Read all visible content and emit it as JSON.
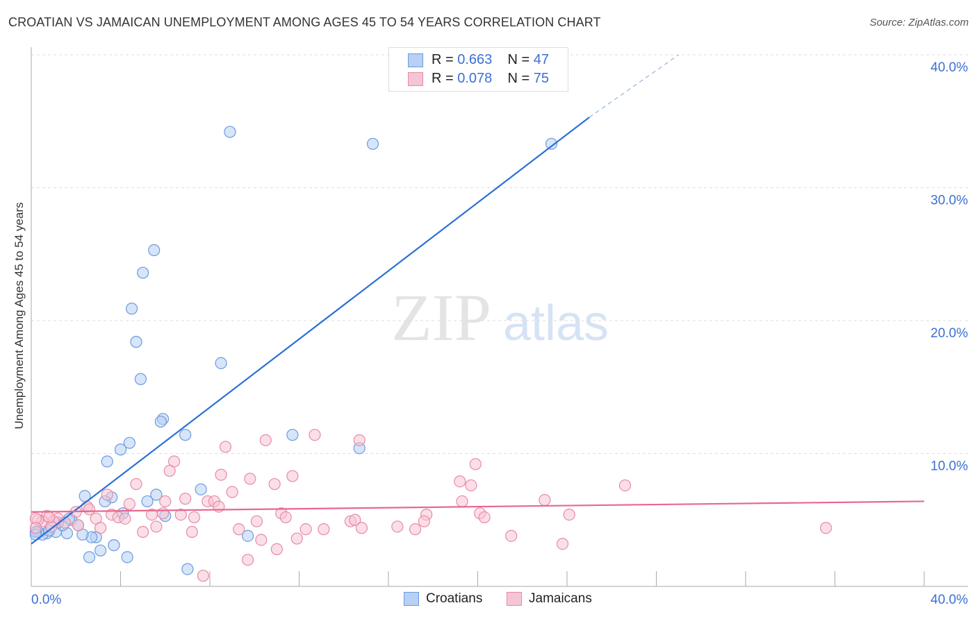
{
  "chart_data": {
    "type": "scatter",
    "title": "CROATIAN VS JAMAICAN UNEMPLOYMENT AMONG AGES 45 TO 54 YEARS CORRELATION CHART",
    "source": "Source: ZipAtlas.com",
    "ylabel": "Unemployment Among Ages 45 to 54 years",
    "xlabel": "",
    "xlim": [
      0,
      40
    ],
    "ylim": [
      0,
      40
    ],
    "x_tick_labels": [
      "0.0%",
      "40.0%"
    ],
    "y_tick_labels": [
      "10.0%",
      "20.0%",
      "30.0%",
      "40.0%"
    ],
    "y_ticks": [
      10,
      20,
      30,
      40
    ],
    "watermark": "ZIPatlas",
    "legend": [
      {
        "r_label": "R =",
        "r": "0.663",
        "n_label": "N =",
        "n": "47"
      },
      {
        "r_label": "R =",
        "r": "0.078",
        "n_label": "N =",
        "n": "75"
      }
    ],
    "series": [
      {
        "name": "Croatians",
        "color": "#6a9be0",
        "fill": "#b7d0f3",
        "trend": {
          "x": [
            0,
            25
          ],
          "y": [
            3.2,
            35.3
          ],
          "dashed_to": [
            29,
            40
          ]
        },
        "points": [
          [
            8.9,
            34.2
          ],
          [
            15.3,
            33.3
          ],
          [
            23.3,
            33.3
          ],
          [
            5.5,
            25.3
          ],
          [
            5.0,
            23.6
          ],
          [
            4.5,
            20.9
          ],
          [
            4.7,
            18.4
          ],
          [
            8.5,
            16.8
          ],
          [
            4.9,
            15.6
          ],
          [
            5.9,
            12.6
          ],
          [
            5.8,
            12.4
          ],
          [
            4.4,
            10.8
          ],
          [
            6.9,
            11.4
          ],
          [
            11.7,
            11.4
          ],
          [
            14.7,
            10.4
          ],
          [
            4.0,
            10.3
          ],
          [
            3.4,
            9.4
          ],
          [
            7.6,
            7.3
          ],
          [
            2.4,
            6.8
          ],
          [
            3.6,
            6.7
          ],
          [
            3.3,
            6.4
          ],
          [
            5.6,
            6.9
          ],
          [
            5.2,
            6.4
          ],
          [
            6.0,
            5.3
          ],
          [
            4.1,
            5.5
          ],
          [
            9.7,
            3.8
          ],
          [
            3.7,
            3.1
          ],
          [
            3.1,
            2.7
          ],
          [
            2.6,
            2.2
          ],
          [
            4.3,
            2.2
          ],
          [
            7.0,
            1.3
          ],
          [
            2.9,
            3.7
          ],
          [
            2.7,
            3.7
          ],
          [
            2.3,
            3.9
          ],
          [
            1.6,
            4.0
          ],
          [
            1.1,
            4.1
          ],
          [
            0.7,
            4.0
          ],
          [
            0.5,
            3.9
          ],
          [
            0.3,
            4.1
          ],
          [
            0.2,
            4.1
          ],
          [
            0.8,
            4.2
          ],
          [
            1.4,
            4.6
          ],
          [
            1.8,
            5.0
          ],
          [
            2.1,
            4.6
          ],
          [
            1.2,
            4.8
          ],
          [
            1.7,
            5.1
          ],
          [
            0.2,
            3.9
          ]
        ]
      },
      {
        "name": "Jamaicans",
        "color": "#e88aa8",
        "fill": "#f6c5d4",
        "trend": {
          "x": [
            0,
            40
          ],
          "y": [
            5.6,
            6.4
          ]
        },
        "points": [
          [
            6.4,
            9.4
          ],
          [
            6.2,
            8.7
          ],
          [
            8.7,
            10.5
          ],
          [
            10.5,
            11.0
          ],
          [
            12.7,
            11.4
          ],
          [
            14.7,
            11.0
          ],
          [
            19.9,
            9.2
          ],
          [
            4.7,
            7.7
          ],
          [
            8.5,
            8.4
          ],
          [
            9.8,
            8.1
          ],
          [
            10.9,
            7.7
          ],
          [
            11.7,
            8.3
          ],
          [
            19.2,
            7.9
          ],
          [
            19.7,
            7.6
          ],
          [
            26.6,
            7.6
          ],
          [
            9.0,
            7.1
          ],
          [
            6.9,
            6.6
          ],
          [
            6.0,
            6.4
          ],
          [
            7.9,
            6.4
          ],
          [
            8.2,
            6.4
          ],
          [
            8.4,
            6.0
          ],
          [
            3.4,
            6.9
          ],
          [
            2.5,
            6.0
          ],
          [
            4.4,
            6.2
          ],
          [
            19.3,
            6.4
          ],
          [
            23.0,
            6.5
          ],
          [
            5.4,
            5.4
          ],
          [
            5.9,
            5.5
          ],
          [
            3.6,
            5.4
          ],
          [
            3.9,
            5.2
          ],
          [
            4.2,
            5.1
          ],
          [
            2.9,
            5.1
          ],
          [
            2.0,
            5.6
          ],
          [
            7.3,
            5.2
          ],
          [
            6.7,
            5.4
          ],
          [
            11.2,
            5.5
          ],
          [
            11.4,
            5.2
          ],
          [
            17.7,
            5.4
          ],
          [
            20.1,
            5.5
          ],
          [
            20.3,
            5.2
          ],
          [
            24.1,
            5.4
          ],
          [
            10.1,
            4.9
          ],
          [
            14.3,
            4.9
          ],
          [
            14.5,
            5.0
          ],
          [
            17.6,
            4.9
          ],
          [
            16.4,
            4.5
          ],
          [
            17.2,
            4.3
          ],
          [
            14.8,
            4.4
          ],
          [
            13.1,
            4.3
          ],
          [
            12.3,
            4.3
          ],
          [
            9.3,
            4.3
          ],
          [
            5.0,
            4.1
          ],
          [
            5.6,
            4.5
          ],
          [
            3.1,
            4.4
          ],
          [
            2.1,
            4.6
          ],
          [
            0.7,
            5.3
          ],
          [
            1.2,
            5.1
          ],
          [
            1.5,
            4.8
          ],
          [
            0.5,
            4.9
          ],
          [
            0.3,
            5.0
          ],
          [
            0.2,
            5.1
          ],
          [
            1.0,
            4.9
          ],
          [
            0.9,
            4.5
          ],
          [
            7.2,
            4.1
          ],
          [
            21.5,
            3.8
          ],
          [
            10.3,
            3.5
          ],
          [
            11.9,
            3.6
          ],
          [
            11.0,
            2.8
          ],
          [
            23.8,
            3.2
          ],
          [
            9.7,
            2.0
          ],
          [
            7.7,
            0.8
          ],
          [
            35.6,
            4.4
          ],
          [
            0.2,
            4.4
          ],
          [
            0.8,
            5.2
          ],
          [
            2.6,
            5.8
          ]
        ]
      }
    ]
  }
}
